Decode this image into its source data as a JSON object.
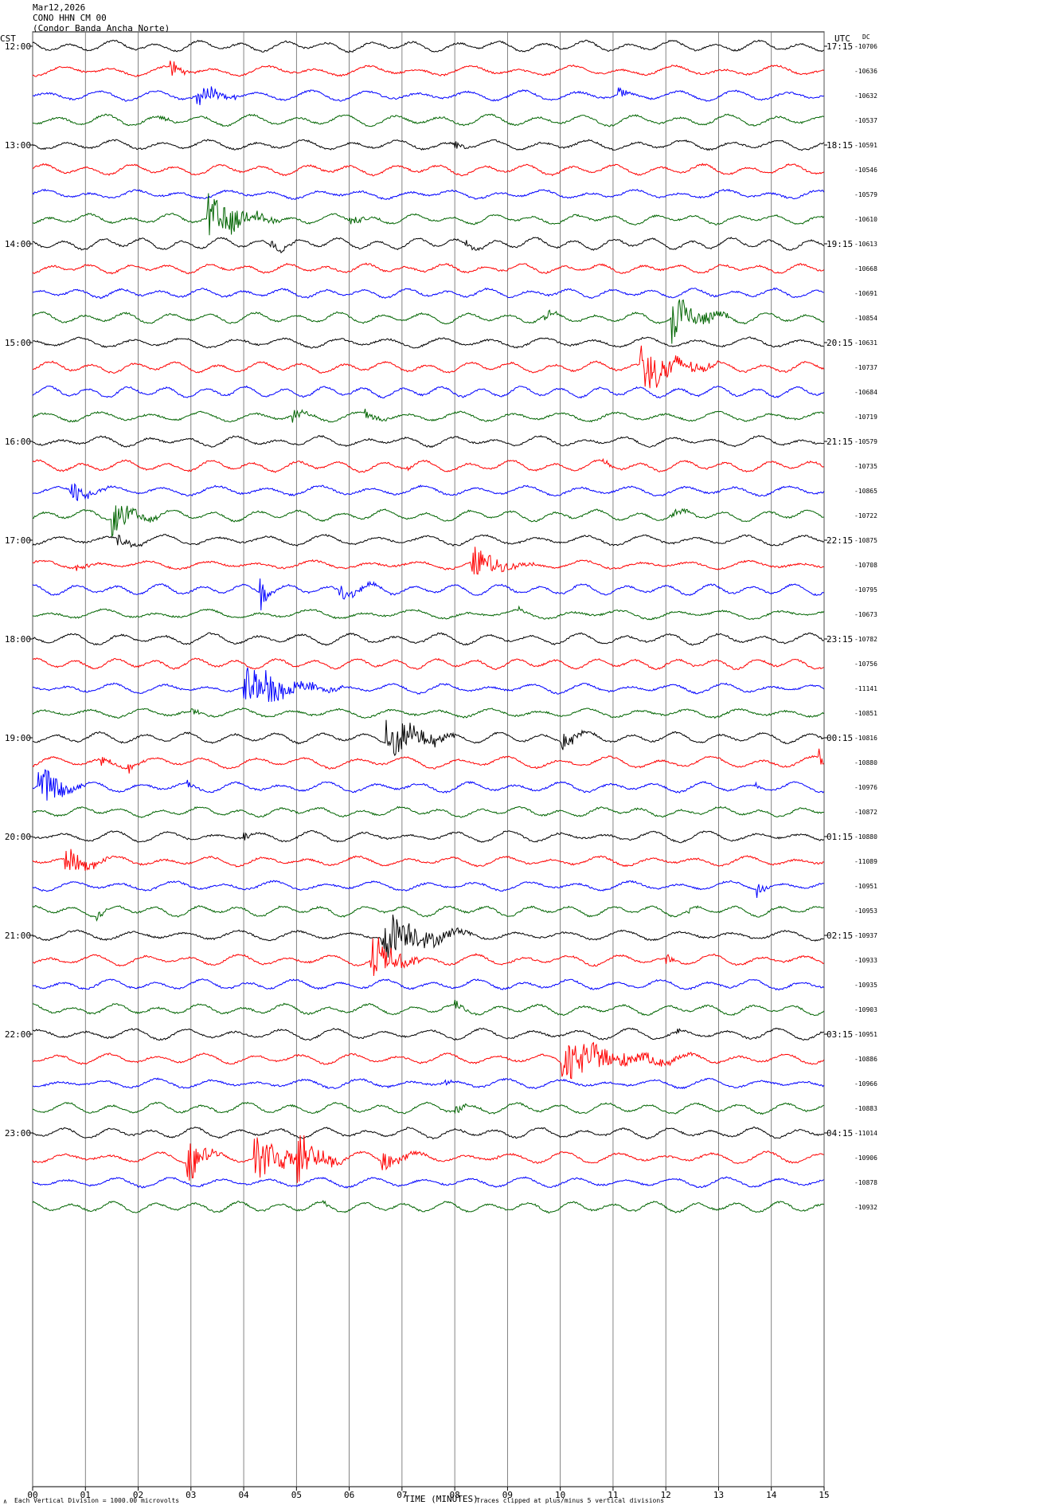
{
  "header": {
    "date": "Mar12,2026",
    "station": "CONO HHN CM 00",
    "site": "(Condor Banda Ancha Norte)"
  },
  "labels": {
    "left_tz": "CST",
    "right_tz": "UTC",
    "dc": "DC",
    "x_title": "TIME (MINUTES)",
    "scale_note": "Each Vertical Division = 1000.00 microvolts",
    "clip_note": "Traces clipped at plus/minus 5 vertical divisions"
  },
  "chart_data": {
    "type": "line",
    "xlabel": "TIME (MINUTES)",
    "xlim": [
      0,
      15
    ],
    "x_ticks": [
      "00",
      "01",
      "02",
      "03",
      "04",
      "05",
      "06",
      "07",
      "08",
      "09",
      "10",
      "11",
      "12",
      "13",
      "14",
      "15"
    ],
    "trace_colors": [
      "#000000",
      "#ff0000",
      "#0000ff",
      "#006400"
    ],
    "left_hour_labels": [
      "12:00",
      "13:00",
      "14:00",
      "15:00",
      "16:00",
      "17:00",
      "18:00",
      "19:00",
      "20:00",
      "21:00",
      "22:00",
      "23:00"
    ],
    "right_hour_labels": [
      "17:15",
      "18:15",
      "19:15",
      "20:15",
      "21:15",
      "22:15",
      "23:15",
      "00:15",
      "01:15",
      "02:15",
      "03:15",
      "04:15"
    ],
    "dc_offsets": [
      "-10706",
      "-10636",
      "-10632",
      "-10537",
      "-10591",
      "-10546",
      "-10579",
      "-10610",
      "-10613",
      "-10668",
      "-10691",
      "-10854",
      "-10631",
      "-10737",
      "-10684",
      "-10719",
      "-10579",
      "-10735",
      "-10865",
      "-10722",
      "-10875",
      "-10708",
      "-10795",
      "-10673",
      "-10782",
      "-10756",
      "-11141",
      "-10851",
      "-10816",
      "-10880",
      "-10976",
      "-10872",
      "-10880",
      "-11089",
      "-10951",
      "-10953",
      "-10937",
      "-10933",
      "-10935",
      "-10903",
      "-10951",
      "-10886",
      "-10966",
      "-10883",
      "-11014",
      "-10906",
      "-10878",
      "-10932"
    ],
    "events": [
      {
        "row": 1,
        "minute": 2.6,
        "amp": 2.2,
        "dur": 0.4
      },
      {
        "row": 2,
        "minute": 3.1,
        "amp": 2.8,
        "dur": 0.8
      },
      {
        "row": 2,
        "minute": 11.1,
        "amp": 1.6,
        "dur": 0.3
      },
      {
        "row": 3,
        "minute": 2.4,
        "amp": 0.9,
        "dur": 0.3
      },
      {
        "row": 4,
        "minute": 8.0,
        "amp": 0.8,
        "dur": 0.3
      },
      {
        "row": 7,
        "minute": 3.3,
        "amp": 5.0,
        "dur": 1.3
      },
      {
        "row": 7,
        "minute": 6.0,
        "amp": 1.0,
        "dur": 0.6
      },
      {
        "row": 8,
        "minute": 4.5,
        "amp": 1.6,
        "dur": 0.5
      },
      {
        "row": 8,
        "minute": 8.2,
        "amp": 0.9,
        "dur": 0.3
      },
      {
        "row": 11,
        "minute": 9.7,
        "amp": 1.3,
        "dur": 0.3
      },
      {
        "row": 11,
        "minute": 12.1,
        "amp": 5.0,
        "dur": 1.0
      },
      {
        "row": 13,
        "minute": 11.5,
        "amp": 5.0,
        "dur": 1.4
      },
      {
        "row": 15,
        "minute": 4.9,
        "amp": 1.3,
        "dur": 0.5
      },
      {
        "row": 15,
        "minute": 6.3,
        "amp": 1.2,
        "dur": 0.5
      },
      {
        "row": 17,
        "minute": 7.1,
        "amp": 0.8,
        "dur": 0.3
      },
      {
        "row": 17,
        "minute": 10.8,
        "amp": 0.8,
        "dur": 0.2
      },
      {
        "row": 18,
        "minute": 0.7,
        "amp": 2.2,
        "dur": 0.7
      },
      {
        "row": 19,
        "minute": 1.5,
        "amp": 3.2,
        "dur": 0.9
      },
      {
        "row": 19,
        "minute": 12.1,
        "amp": 1.3,
        "dur": 0.4
      },
      {
        "row": 20,
        "minute": 1.6,
        "amp": 1.4,
        "dur": 0.6
      },
      {
        "row": 21,
        "minute": 0.8,
        "amp": 1.0,
        "dur": 0.5
      },
      {
        "row": 21,
        "minute": 8.3,
        "amp": 3.2,
        "dur": 1.1
      },
      {
        "row": 22,
        "minute": 5.8,
        "amp": 1.3,
        "dur": 1.0
      },
      {
        "row": 22,
        "minute": 4.3,
        "amp": 5.0,
        "dur": 0.2
      },
      {
        "row": 23,
        "minute": 9.2,
        "amp": 0.8,
        "dur": 0.2
      },
      {
        "row": 26,
        "minute": 4.0,
        "amp": 3.5,
        "dur": 1.8
      },
      {
        "row": 26,
        "minute": 4.4,
        "amp": 5.0,
        "dur": 0.3
      },
      {
        "row": 27,
        "minute": 3.0,
        "amp": 0.8,
        "dur": 0.3
      },
      {
        "row": 28,
        "minute": 6.7,
        "amp": 4.6,
        "dur": 1.2
      },
      {
        "row": 28,
        "minute": 7.5,
        "amp": 1.6,
        "dur": 0.3
      },
      {
        "row": 28,
        "minute": 10.0,
        "amp": 2.0,
        "dur": 0.6
      },
      {
        "row": 29,
        "minute": 1.3,
        "amp": 1.2,
        "dur": 0.3
      },
      {
        "row": 29,
        "minute": 1.8,
        "amp": 1.3,
        "dur": 0.3
      },
      {
        "row": 29,
        "minute": 14.9,
        "amp": 1.8,
        "dur": 0.3
      },
      {
        "row": 30,
        "minute": 0.1,
        "amp": 4.5,
        "dur": 0.8
      },
      {
        "row": 30,
        "minute": 2.9,
        "amp": 1.0,
        "dur": 0.3
      },
      {
        "row": 30,
        "minute": 13.7,
        "amp": 0.6,
        "dur": 0.2
      },
      {
        "row": 32,
        "minute": 4.0,
        "amp": 0.8,
        "dur": 0.2
      },
      {
        "row": 33,
        "minute": 0.6,
        "amp": 2.8,
        "dur": 0.8
      },
      {
        "row": 34,
        "minute": 13.7,
        "amp": 1.8,
        "dur": 0.3
      },
      {
        "row": 35,
        "minute": 1.2,
        "amp": 1.1,
        "dur": 0.3
      },
      {
        "row": 35,
        "minute": 12.4,
        "amp": 0.9,
        "dur": 0.2
      },
      {
        "row": 36,
        "minute": 6.6,
        "amp": 5.0,
        "dur": 1.6
      },
      {
        "row": 37,
        "minute": 6.4,
        "amp": 5.0,
        "dur": 0.9
      },
      {
        "row": 37,
        "minute": 12.0,
        "amp": 1.3,
        "dur": 0.3
      },
      {
        "row": 39,
        "minute": 8.0,
        "amp": 1.1,
        "dur": 0.3
      },
      {
        "row": 40,
        "minute": 12.2,
        "amp": 0.5,
        "dur": 0.3
      },
      {
        "row": 41,
        "minute": 10.0,
        "amp": 4.0,
        "dur": 2.4
      },
      {
        "row": 42,
        "minute": 7.8,
        "amp": 0.8,
        "dur": 0.2
      },
      {
        "row": 43,
        "minute": 8.0,
        "amp": 1.0,
        "dur": 0.5
      },
      {
        "row": 45,
        "minute": 2.9,
        "amp": 5.0,
        "dur": 0.6
      },
      {
        "row": 45,
        "minute": 4.2,
        "amp": 5.0,
        "dur": 1.2
      },
      {
        "row": 45,
        "minute": 5.0,
        "amp": 5.0,
        "dur": 0.9
      },
      {
        "row": 45,
        "minute": 6.6,
        "amp": 1.8,
        "dur": 0.8
      },
      {
        "row": 45,
        "minute": 8.8,
        "amp": 0.7,
        "dur": 0.2
      },
      {
        "row": 47,
        "minute": 5.5,
        "amp": 0.8,
        "dur": 0.2
      }
    ]
  }
}
